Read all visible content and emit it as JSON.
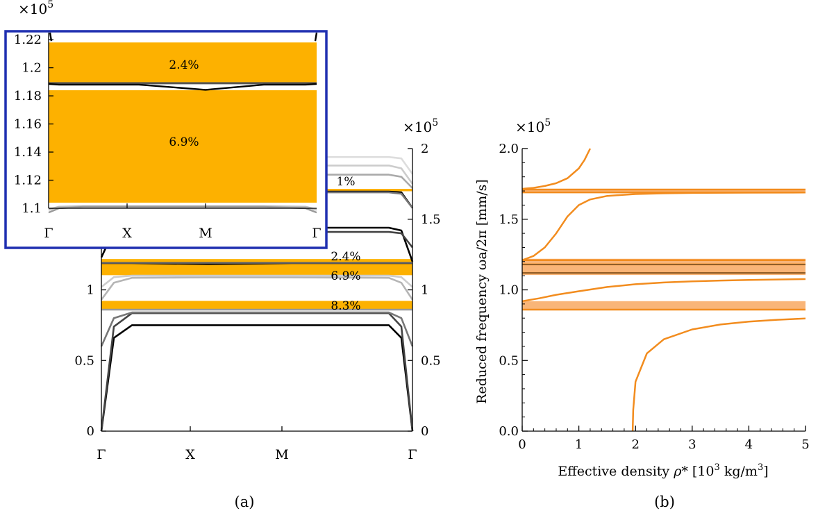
{
  "figure": {
    "caption_a": "(a)",
    "caption_b": "(b)"
  },
  "chart_data": [
    {
      "type": "line",
      "panel": "a",
      "multiplier": "×10",
      "multiplier_exp": "5",
      "x_ticks": [
        "Γ",
        "X",
        "M",
        "Γ"
      ],
      "y_ticks_left": [
        "0",
        "0.5",
        "1",
        "1.5",
        "2"
      ],
      "y_ticks_right": [
        "0",
        "0.5",
        "1",
        "1.5",
        "2"
      ],
      "ylim": [
        0,
        2
      ],
      "band_gaps": [
        {
          "from": 0.86,
          "to": 0.922,
          "label": "8.3%"
        },
        {
          "from": 1.104,
          "to": 1.184,
          "label": "6.9%"
        },
        {
          "from": 1.189,
          "to": 1.218,
          "label": "2.4%"
        },
        {
          "from": 1.698,
          "to": 1.715,
          "label": "1%"
        }
      ],
      "gap_color": "#FDB100",
      "series": [
        {
          "color": "#000000",
          "y": [
            0,
            0.66,
            0.75,
            0.75,
            0.75,
            0.75,
            0.66,
            0
          ]
        },
        {
          "color": "#444444",
          "y": [
            0,
            0.74,
            0.835,
            0.835,
            0.835,
            0.835,
            0.74,
            0
          ]
        },
        {
          "color": "#777777",
          "y": [
            0.6,
            0.8,
            0.84,
            0.84,
            0.84,
            0.84,
            0.8,
            0.6
          ]
        },
        {
          "color": "#999999",
          "y": [
            0.86,
            0.86,
            0.86,
            0.86,
            0.86,
            0.86,
            0.86,
            0.86
          ]
        },
        {
          "color": "#b5b5b5",
          "y": [
            0.93,
            1.05,
            1.085,
            1.088,
            1.088,
            1.085,
            1.05,
            0.93
          ]
        },
        {
          "color": "#cccccc",
          "y": [
            1.02,
            1.09,
            1.1,
            1.1,
            1.1,
            1.1,
            1.09,
            1.02
          ]
        },
        {
          "color": "#000000",
          "y": [
            1.189,
            1.189,
            1.189,
            1.183,
            1.189,
            1.189,
            1.189,
            1.189
          ]
        },
        {
          "color": "#666666",
          "y": [
            1.191,
            1.191,
            1.191,
            1.191,
            1.191,
            1.191,
            1.191,
            1.191
          ]
        },
        {
          "color": "#000000",
          "y": [
            1.23,
            1.42,
            1.44,
            1.44,
            1.44,
            1.44,
            1.42,
            1.2
          ]
        },
        {
          "color": "#444444",
          "y": [
            1.3,
            1.4,
            1.41,
            1.41,
            1.41,
            1.41,
            1.4,
            1.3
          ]
        },
        {
          "color": "#000000",
          "y": [
            1.5,
            1.69,
            1.695,
            1.695,
            1.695,
            1.695,
            1.69,
            1.58
          ]
        },
        {
          "color": "#777777",
          "y": [
            1.55,
            1.68,
            1.69,
            1.69,
            1.69,
            1.69,
            1.68,
            1.58
          ]
        },
        {
          "color": "#aaaaaa",
          "y": [
            1.72,
            1.8,
            1.815,
            1.815,
            1.815,
            1.815,
            1.8,
            1.72
          ]
        },
        {
          "color": "#cccccc",
          "y": [
            1.75,
            1.86,
            1.88,
            1.88,
            1.88,
            1.88,
            1.86,
            1.75
          ]
        },
        {
          "color": "#dddddd",
          "y": [
            1.82,
            1.93,
            1.94,
            1.94,
            1.94,
            1.94,
            1.93,
            1.82
          ]
        }
      ],
      "inset": {
        "multiplier": "×10",
        "multiplier_exp": "5",
        "ylim": [
          1.1,
          1.225
        ],
        "y_ticks": [
          "1.1",
          "1.12",
          "1.14",
          "1.16",
          "1.18",
          "1.2",
          "1.22"
        ],
        "x_ticks": [
          "Γ",
          "X",
          "M",
          "Γ"
        ],
        "gap_labels": [
          "2.4%",
          "6.9%"
        ],
        "frame_color": "#1f2fb0"
      }
    },
    {
      "type": "line",
      "panel": "b",
      "multiplier": "×10",
      "multiplier_exp": "5",
      "xlabel_prefix": "Effective density ",
      "xlabel_symbol": "ρ",
      "xlabel_rest": "* [10",
      "xlabel_exp": "3",
      "xlabel_unit": " kg/m",
      "xlabel_exp2": "3",
      "xlabel_end": "]",
      "ylabel": "Reduced frequency ωa/2π [mm/s]",
      "x_ticks": [
        "0",
        "1",
        "2",
        "3",
        "4",
        "5"
      ],
      "y_ticks": [
        "0.0",
        "0.5",
        "1.0",
        "1.5",
        "2.0"
      ],
      "xlim": [
        0,
        5
      ],
      "ylim": [
        0,
        2
      ],
      "line_color": "#F28C1E",
      "band_color": "#F8A860",
      "bands": [
        {
          "from": 0.86,
          "to": 0.92
        },
        {
          "from": 1.105,
          "to": 1.22
        },
        {
          "from": 1.69,
          "to": 1.715
        }
      ],
      "horizontal_lines": [
        0.86,
        1.12,
        1.18,
        1.21,
        1.69,
        1.71
      ],
      "dark_lines": [
        1.12,
        1.18
      ],
      "curves": [
        {
          "x": [
            1.95,
            1.96,
            2.0,
            2.2,
            2.5,
            3.0,
            3.5,
            4.0,
            4.5,
            5.0
          ],
          "y": [
            0.0,
            0.15,
            0.35,
            0.55,
            0.65,
            0.72,
            0.755,
            0.775,
            0.788,
            0.797
          ]
        },
        {
          "x": [
            0,
            0.3,
            0.6,
            1.0,
            1.5,
            2.0,
            2.5,
            3.0,
            3.5,
            4.0,
            4.5,
            5.0
          ],
          "y": [
            0.92,
            0.94,
            0.965,
            0.99,
            1.02,
            1.04,
            1.052,
            1.06,
            1.066,
            1.07,
            1.073,
            1.076
          ]
        },
        {
          "x": [
            0,
            0.2,
            0.4,
            0.6,
            0.8,
            1.0,
            1.2,
            1.5,
            2.0,
            2.5,
            3.0,
            4.0,
            5.0
          ],
          "y": [
            1.21,
            1.24,
            1.3,
            1.4,
            1.52,
            1.6,
            1.64,
            1.665,
            1.678,
            1.683,
            1.686,
            1.688,
            1.689
          ]
        },
        {
          "x": [
            0,
            0.2,
            0.4,
            0.6,
            0.8,
            1.0,
            1.1,
            1.2
          ],
          "y": [
            1.715,
            1.722,
            1.735,
            1.755,
            1.79,
            1.86,
            1.92,
            2.0
          ]
        }
      ]
    }
  ]
}
